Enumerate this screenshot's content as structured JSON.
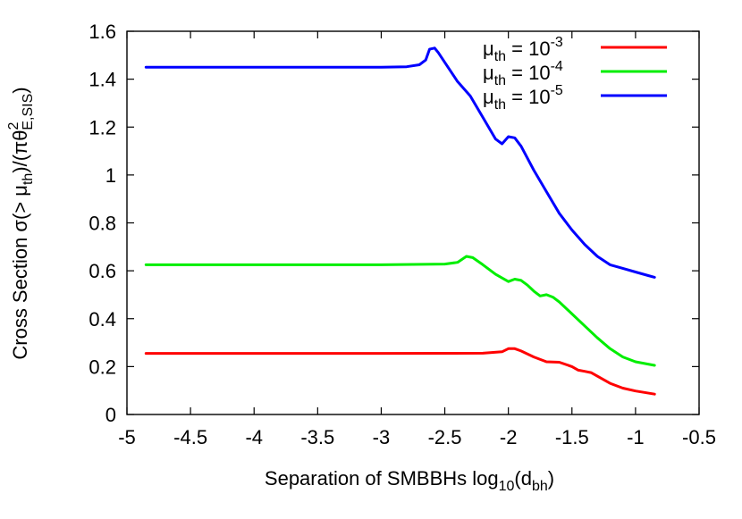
{
  "chart_data": {
    "type": "line",
    "title": "",
    "xlabel": {
      "main": "Separation of SMBBHs log",
      "sub10": "10",
      "paren_open": "(d",
      "sub_bh": "bh",
      "paren_close": ")"
    },
    "ylabel": {
      "p1": "Cross Section σ(> μ",
      "sub_th": "th",
      "p2": ")/(πθ",
      "sup2": "2",
      "sub_es": "E,SIS",
      "p3": ")"
    },
    "xlim": [
      -5,
      -0.5
    ],
    "ylim": [
      0,
      1.6
    ],
    "x_ticks": [
      -5,
      -4.5,
      -4,
      -3.5,
      -3,
      -2.5,
      -2,
      -1.5,
      -1,
      -0.5
    ],
    "x_tick_labels": [
      "-5",
      "-4.5",
      "-4",
      "-3.5",
      "-3",
      "-2.5",
      "-2",
      "-1.5",
      "-1",
      "-0.5"
    ],
    "y_ticks": [
      0,
      0.2,
      0.4,
      0.6,
      0.8,
      1,
      1.2,
      1.4,
      1.6
    ],
    "y_tick_labels": [
      "0",
      "0.2",
      "0.4",
      "0.6",
      "0.8",
      "1",
      "1.2",
      "1.4",
      "1.6"
    ],
    "grid": false,
    "legend_position": "top-right",
    "series": [
      {
        "name": "μth = 10-3",
        "legend": {
          "mu": "μ",
          "sub": "th",
          "eq": " = 10",
          "exp": "-3"
        },
        "color": "#ff0000",
        "x": [
          -4.85,
          -3.0,
          -2.2,
          -2.05,
          -2.0,
          -1.95,
          -1.9,
          -1.8,
          -1.7,
          -1.6,
          -1.5,
          -1.45,
          -1.4,
          -1.35,
          -1.3,
          -1.2,
          -1.1,
          -1.0,
          -0.85
        ],
        "y": [
          0.255,
          0.255,
          0.256,
          0.262,
          0.275,
          0.275,
          0.265,
          0.24,
          0.22,
          0.218,
          0.2,
          0.185,
          0.18,
          0.175,
          0.16,
          0.13,
          0.11,
          0.098,
          0.085
        ]
      },
      {
        "name": "μth = 10-4",
        "legend": {
          "mu": "μ",
          "sub": "th",
          "eq": " = 10",
          "exp": "-4"
        },
        "color": "#00ee00",
        "x": [
          -4.85,
          -3.0,
          -2.5,
          -2.4,
          -2.33,
          -2.28,
          -2.2,
          -2.1,
          -2.0,
          -1.95,
          -1.9,
          -1.85,
          -1.8,
          -1.75,
          -1.7,
          -1.65,
          -1.6,
          -1.5,
          -1.4,
          -1.3,
          -1.2,
          -1.1,
          -1.0,
          -0.85
        ],
        "y": [
          0.625,
          0.625,
          0.628,
          0.635,
          0.66,
          0.655,
          0.625,
          0.585,
          0.555,
          0.565,
          0.56,
          0.54,
          0.515,
          0.495,
          0.5,
          0.49,
          0.47,
          0.42,
          0.37,
          0.32,
          0.275,
          0.24,
          0.22,
          0.205
        ]
      },
      {
        "name": "μth = 10-5",
        "legend": {
          "mu": "μ",
          "sub": "th",
          "eq": " = 10",
          "exp": "-5"
        },
        "color": "#0000ff",
        "x": [
          -4.85,
          -3.0,
          -2.8,
          -2.7,
          -2.65,
          -2.62,
          -2.58,
          -2.55,
          -2.5,
          -2.4,
          -2.3,
          -2.2,
          -2.1,
          -2.05,
          -2.0,
          -1.95,
          -1.9,
          -1.8,
          -1.7,
          -1.6,
          -1.5,
          -1.4,
          -1.3,
          -1.2,
          -1.1,
          -1.0,
          -0.9,
          -0.85
        ],
        "y": [
          1.45,
          1.45,
          1.452,
          1.46,
          1.48,
          1.525,
          1.53,
          1.51,
          1.47,
          1.39,
          1.33,
          1.24,
          1.15,
          1.13,
          1.16,
          1.155,
          1.12,
          1.02,
          0.93,
          0.84,
          0.77,
          0.71,
          0.66,
          0.625,
          0.61,
          0.595,
          0.58,
          0.573
        ]
      }
    ]
  }
}
